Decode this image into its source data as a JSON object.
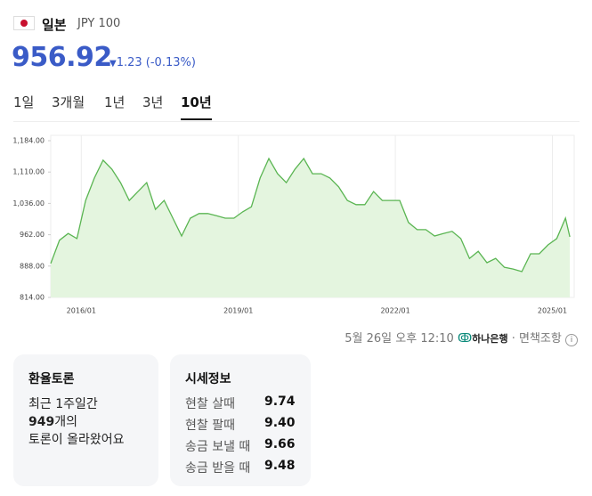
{
  "header": {
    "country": "일본",
    "code": "JPY 100",
    "price": "956.92",
    "change": "1.23",
    "change_pct": "(-0.13%)"
  },
  "tabs": [
    "1일",
    "3개월",
    "1년",
    "3년",
    "10년"
  ],
  "selected_tab": 4,
  "chart_data": {
    "type": "area",
    "color": "#5ab552",
    "fill": "#e4f5df",
    "grid": true,
    "x": [
      "2015/06",
      "2015/08",
      "2015/10",
      "2015/12",
      "2016/02",
      "2016/04",
      "2016/06",
      "2016/08",
      "2016/10",
      "2016/12",
      "2017/02",
      "2017/04",
      "2017/06",
      "2017/08",
      "2017/10",
      "2017/12",
      "2018/02",
      "2018/04",
      "2018/06",
      "2018/08",
      "2018/10",
      "2018/12",
      "2019/02",
      "2019/04",
      "2019/06",
      "2019/08",
      "2019/10",
      "2019/12",
      "2020/02",
      "2020/04",
      "2020/06",
      "2020/08",
      "2020/10",
      "2020/12",
      "2021/02",
      "2021/04",
      "2021/06",
      "2021/08",
      "2021/10",
      "2021/12",
      "2022/02",
      "2022/04",
      "2022/06",
      "2022/08",
      "2022/10",
      "2022/12",
      "2023/02",
      "2023/04",
      "2023/06",
      "2023/08",
      "2023/10",
      "2023/12",
      "2024/02",
      "2024/04",
      "2024/06",
      "2024/08",
      "2024/10",
      "2024/12",
      "2025/02",
      "2025/04",
      "2025/05"
    ],
    "values": [
      894,
      949,
      965,
      953,
      1043,
      1096,
      1138,
      1117,
      1085,
      1043,
      1064,
      1085,
      1022,
      1043,
      1001,
      959,
      1001,
      1012,
      1012,
      1007,
      1001,
      1001,
      1016,
      1028,
      1096,
      1142,
      1106,
      1085,
      1117,
      1142,
      1106,
      1106,
      1096,
      1075,
      1043,
      1033,
      1033,
      1064,
      1043,
      1043,
      1043,
      991,
      974,
      974,
      959,
      965,
      970,
      953,
      906,
      923,
      896,
      906,
      885,
      881,
      875,
      917,
      917,
      938,
      953,
      1001,
      957
    ],
    "xlim": [
      "2015/06",
      "2025/06"
    ],
    "xticks": [
      "2016/01",
      "2019/01",
      "2022/01",
      "2025/01"
    ],
    "ylim": [
      814,
      1184
    ],
    "yticks": [
      {
        "value": 814,
        "label": "814.00"
      },
      {
        "value": 888,
        "label": "888.00"
      },
      {
        "value": 962,
        "label": "962.00"
      },
      {
        "value": 1036,
        "label": "1,036.00"
      },
      {
        "value": 1110,
        "label": "1,110.00"
      },
      {
        "value": 1184,
        "label": "1,184.00"
      }
    ]
  },
  "footer": {
    "timestamp": "5월 26일 오후 12:10",
    "bank": "하나은행",
    "disclaimer": "면책조항"
  },
  "discussion": {
    "title": "환율토론",
    "line1": "최근 1주일간",
    "count": "949",
    "count_suffix": "개의",
    "line3": "토론이 올라왔어요"
  },
  "quotes": {
    "title": "시세정보",
    "rows": [
      [
        "현찰 살때",
        "9.74"
      ],
      [
        "현찰 팔때",
        "9.40"
      ],
      [
        "송금 보낼 때",
        "9.66"
      ],
      [
        "송금 받을 때",
        "9.48"
      ]
    ]
  }
}
